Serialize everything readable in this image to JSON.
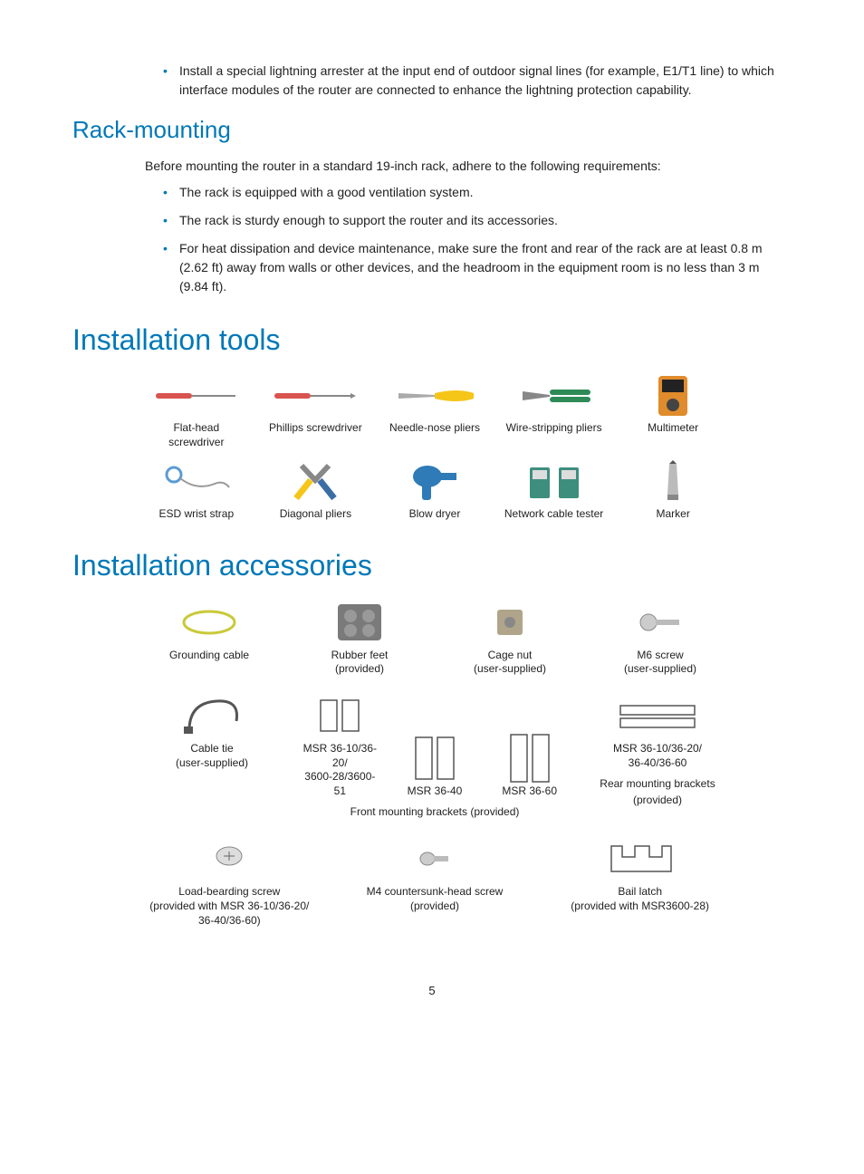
{
  "colors": {
    "heading": "#0078b8",
    "bullet": "#0078b8",
    "text": "#222222",
    "background": "#ffffff"
  },
  "intro_bullets": [
    "Install a special lightning arrester at the input end of outdoor signal lines (for example, E1/T1 line) to which interface modules of the router are connected to enhance the lightning protection capability."
  ],
  "rack": {
    "heading": "Rack-mounting",
    "intro": "Before mounting the router in a standard 19-inch rack, adhere to the following requirements:",
    "bullets": [
      "The rack is equipped with a good ventilation system.",
      "The rack is sturdy enough to support the router and its accessories.",
      "For heat dissipation and device maintenance, make sure the front and rear of the rack are at least 0.8 m (2.62 ft) away from walls or other devices, and the headroom in the equipment room is no less than 3 m (9.84 ft)."
    ]
  },
  "tools": {
    "heading": "Installation tools",
    "items": [
      {
        "name": "flathead-screwdriver",
        "label": "Flat-head screwdriver"
      },
      {
        "name": "phillips-screwdriver",
        "label": "Phillips screwdriver"
      },
      {
        "name": "needlenose-pliers",
        "label": "Needle-nose pliers"
      },
      {
        "name": "wirestripping-pliers",
        "label": "Wire-stripping pliers"
      },
      {
        "name": "multimeter",
        "label": "Multimeter"
      },
      {
        "name": "esd-wrist-strap",
        "label": "ESD wrist strap"
      },
      {
        "name": "diagonal-pliers",
        "label": "Diagonal pliers"
      },
      {
        "name": "blow-dryer",
        "label": "Blow dryer"
      },
      {
        "name": "network-cable-tester",
        "label": "Network cable tester"
      },
      {
        "name": "marker",
        "label": "Marker"
      }
    ]
  },
  "accessories": {
    "heading": "Installation accessories",
    "row1": [
      {
        "name": "grounding-cable",
        "label": "Grounding cable"
      },
      {
        "name": "rubber-feet",
        "label": "Rubber feet\n(provided)"
      },
      {
        "name": "cage-nut",
        "label": "Cage nut\n(user-supplied)"
      },
      {
        "name": "m6-screw",
        "label": "M6 screw\n(user-supplied)"
      }
    ],
    "row2_first": {
      "name": "cable-tie",
      "label": "Cable tie\n(user-supplied)"
    },
    "front_brackets": {
      "items": [
        {
          "name": "bracket-36-10",
          "label": "MSR 36-10/36-20/\n3600-28/3600-51"
        },
        {
          "name": "bracket-36-40",
          "label": "MSR 36-40"
        },
        {
          "name": "bracket-36-60",
          "label": "MSR 36-60"
        }
      ],
      "group_label": "Front mounting brackets (provided)"
    },
    "rear_brackets": {
      "item": {
        "name": "rear-bracket",
        "label": "MSR 36-10/36-20/\n36-40/36-60"
      },
      "group_label": "Rear mounting brackets (provided)"
    },
    "row3": [
      {
        "name": "load-bearing-screw",
        "label": "Load-bearding screw\n(provided with MSR 36-10/36-20/\n36-40/36-60)"
      },
      {
        "name": "m4-countersunk-screw",
        "label": "M4 countersunk-head screw\n(provided)"
      },
      {
        "name": "bail-latch",
        "label": "Bail latch\n(provided with MSR3600-28)"
      }
    ]
  },
  "page_number": "5"
}
